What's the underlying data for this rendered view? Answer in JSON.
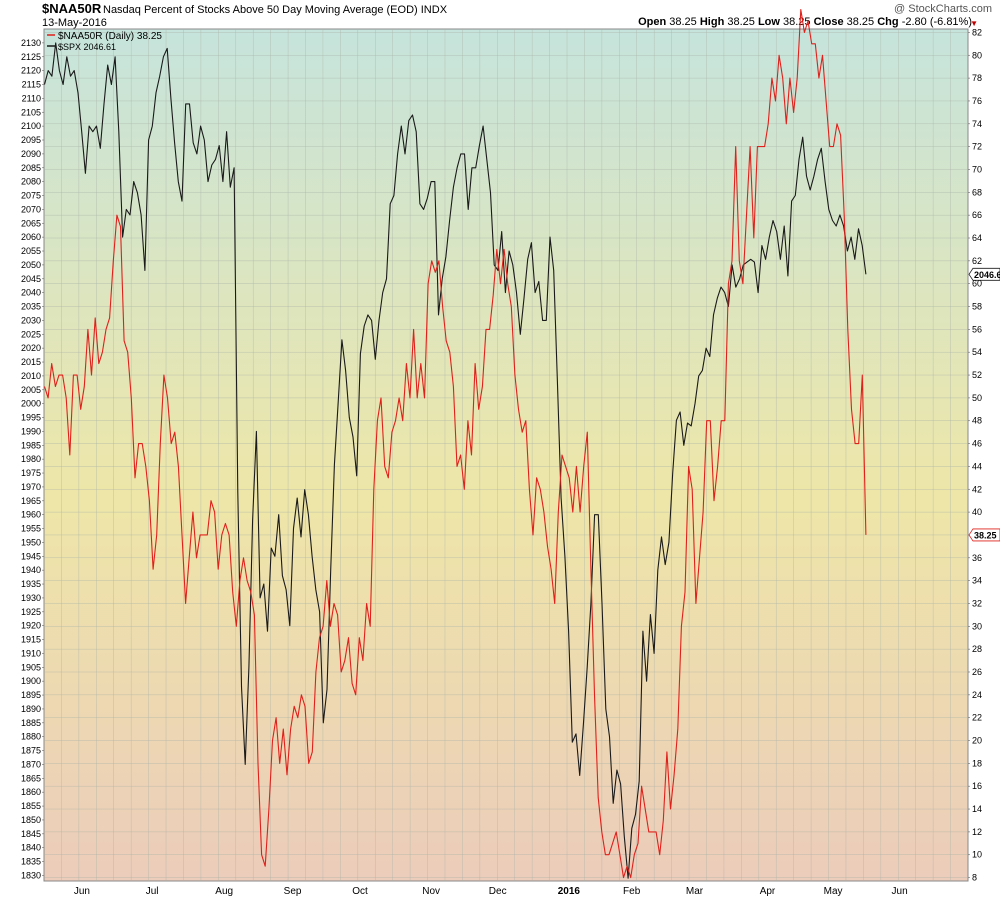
{
  "header": {
    "ticker": "$NAA50R",
    "description": "Nasdaq Percent of Stocks Above 50 Day Moving Average (EOD)",
    "exchange": "INDX",
    "date": "13-May-2016",
    "watermark": "@ StockCharts.com",
    "open_label": "Open",
    "open": "38.25",
    "high_label": "High",
    "high": "38.25",
    "low_label": "Low",
    "low": "38.25",
    "close_label": "Close",
    "close": "38.25",
    "chg_label": "Chg",
    "chg": "-2.80 (-6.81%)"
  },
  "colors": {
    "naa50r": "#e0201b",
    "spx": "#1a1a1a",
    "bg_top": "#c6e4dc",
    "bg_mid": "#eee6a8",
    "bg_bottom": "#ecccba"
  },
  "chart_data": {
    "type": "line",
    "title": "$NAA50R Nasdaq Percent of Stocks Above 50 Day Moving Average (EOD)",
    "grid": true,
    "legend_position": "top-left",
    "legend": [
      "$NAA50R (Daily) 38.25",
      "$SPX 2046.61"
    ],
    "last_values": {
      "naa50r": "38.25",
      "spx": "2046.61"
    },
    "x_tick_labels": [
      "Jun",
      "Jul",
      "Aug",
      "Sep",
      "Oct",
      "Nov",
      "Dec",
      "2016",
      "Feb",
      "Mar",
      "Apr",
      "May",
      "Jun"
    ],
    "left_axis": {
      "series": "$SPX",
      "range": [
        1828,
        2135
      ],
      "step": 5,
      "ticks": [
        1830,
        1835,
        1840,
        1845,
        1850,
        1855,
        1860,
        1865,
        1870,
        1875,
        1880,
        1885,
        1890,
        1895,
        1900,
        1905,
        1910,
        1915,
        1920,
        1925,
        1930,
        1935,
        1940,
        1945,
        1950,
        1955,
        1960,
        1965,
        1970,
        1975,
        1980,
        1985,
        1990,
        1995,
        2000,
        2005,
        2010,
        2015,
        2020,
        2025,
        2030,
        2035,
        2040,
        2045,
        2050,
        2055,
        2060,
        2065,
        2070,
        2075,
        2080,
        2085,
        2090,
        2095,
        2100,
        2105,
        2110,
        2115,
        2120,
        2125,
        2130
      ]
    },
    "right_axis": {
      "series": "$NAA50R",
      "range": [
        7.7,
        82.3
      ],
      "step": 2,
      "ticks": [
        8,
        10,
        12,
        14,
        16,
        18,
        20,
        22,
        24,
        26,
        28,
        30,
        32,
        34,
        36,
        38,
        40,
        42,
        44,
        46,
        48,
        50,
        52,
        54,
        56,
        58,
        60,
        62,
        64,
        66,
        68,
        70,
        72,
        74,
        76,
        78,
        80,
        82
      ]
    },
    "series": [
      {
        "name": "$NAA50R",
        "axis": "right",
        "values": [
          51,
          50,
          53,
          51,
          52,
          52,
          50,
          45,
          52,
          52,
          49,
          51,
          56,
          52,
          57,
          53,
          54,
          56,
          57,
          62,
          66,
          65,
          55,
          54,
          50,
          43,
          46,
          46,
          44,
          41,
          35,
          38,
          46,
          52,
          50,
          46,
          47,
          44,
          38,
          32,
          36,
          40,
          36,
          38,
          38,
          38,
          41,
          40,
          35,
          38,
          39,
          38,
          33,
          30,
          34,
          36,
          34,
          33,
          31,
          18,
          10,
          9,
          14,
          20,
          22,
          18,
          21,
          17,
          21,
          23,
          22,
          24,
          23,
          18,
          19,
          26,
          29,
          30,
          34,
          30,
          32,
          31,
          26,
          27,
          29,
          25,
          24,
          29,
          27,
          32,
          30,
          42,
          48,
          50,
          44,
          43,
          47,
          48,
          50,
          48,
          53,
          50,
          56,
          50,
          53,
          50,
          60,
          62,
          61,
          62,
          58,
          55,
          54,
          51,
          44,
          45,
          42,
          48,
          45,
          53,
          49,
          51,
          56,
          56,
          59,
          63,
          60,
          63,
          60,
          58,
          52,
          49,
          47,
          48,
          42,
          38,
          43,
          42,
          40,
          37,
          35,
          32,
          40,
          45,
          44,
          43,
          40,
          44,
          40,
          44,
          47,
          35,
          24,
          15,
          12,
          10,
          10,
          11,
          12,
          10,
          8,
          9,
          8,
          10,
          11,
          16,
          14,
          12,
          12,
          12,
          10,
          13,
          19,
          14,
          17,
          21,
          30,
          33,
          44,
          42,
          32,
          36,
          40,
          48,
          48,
          41,
          44,
          48,
          48,
          60,
          62,
          72,
          62,
          60,
          66,
          72,
          64,
          72,
          72,
          72,
          74,
          78,
          76,
          80,
          78,
          74,
          78,
          75,
          78,
          84,
          82,
          83,
          81,
          81,
          78,
          80,
          76,
          72,
          72,
          74,
          73,
          66,
          56,
          49,
          46,
          46,
          52,
          38
        ]
      },
      {
        "name": "$SPX",
        "axis": "left",
        "values": [
          2115,
          2120,
          2118,
          2130,
          2120,
          2115,
          2125,
          2118,
          2120,
          2112,
          2098,
          2083,
          2100,
          2098,
          2100,
          2092,
          2108,
          2122,
          2115,
          2125,
          2098,
          2060,
          2070,
          2068,
          2080,
          2076,
          2068,
          2048,
          2095,
          2100,
          2112,
          2118,
          2125,
          2128,
          2110,
          2094,
          2080,
          2073,
          2108,
          2108,
          2094,
          2090,
          2100,
          2095,
          2080,
          2086,
          2088,
          2093,
          2080,
          2098,
          2078,
          2085,
          1968,
          1898,
          1870,
          1905,
          1958,
          1990,
          1930,
          1935,
          1918,
          1948,
          1945,
          1960,
          1938,
          1933,
          1920,
          1955,
          1966,
          1952,
          1969,
          1960,
          1945,
          1933,
          1925,
          1885,
          1897,
          1940,
          1978,
          2000,
          2023,
          2012,
          1995,
          1988,
          1974,
          2018,
          2028,
          2032,
          2030,
          2016,
          2030,
          2040,
          2045,
          2072,
          2075,
          2090,
          2100,
          2090,
          2102,
          2104,
          2098,
          2072,
          2070,
          2074,
          2080,
          2080,
          2032,
          2045,
          2053,
          2066,
          2078,
          2085,
          2090,
          2090,
          2070,
          2085,
          2085,
          2093,
          2100,
          2088,
          2076,
          2050,
          2048,
          2062,
          2040,
          2055,
          2050,
          2040,
          2025,
          2038,
          2052,
          2058,
          2040,
          2044,
          2030,
          2030,
          2060,
          2048,
          2008,
          1966,
          1945,
          1918,
          1878,
          1881,
          1866,
          1885,
          1905,
          1928,
          1960,
          1960,
          1928,
          1890,
          1880,
          1856,
          1868,
          1863,
          1844,
          1829,
          1847,
          1852,
          1864,
          1918,
          1900,
          1924,
          1910,
          1940,
          1952,
          1942,
          1950,
          1975,
          1994,
          1997,
          1985,
          1993,
          1992,
          2000,
          2010,
          2012,
          2020,
          2017,
          2032,
          2038,
          2042,
          2040,
          2035,
          2050,
          2042,
          2045,
          2050,
          2051,
          2052,
          2051,
          2040,
          2057,
          2052,
          2060,
          2066,
          2062,
          2052,
          2064,
          2046,
          2073,
          2075,
          2088,
          2096,
          2082,
          2077,
          2082,
          2088,
          2092,
          2080,
          2070,
          2066,
          2064,
          2068,
          2064,
          2055,
          2060,
          2052,
          2063,
          2057,
          2046.61
        ]
      }
    ]
  }
}
